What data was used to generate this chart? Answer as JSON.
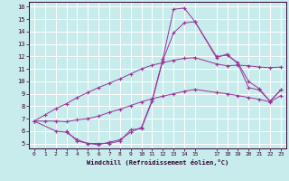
{
  "xlabel": "Windchill (Refroidissement éolien,°C)",
  "bg_color": "#c8ecec",
  "line_color": "#993399",
  "grid_color": "#ffffff",
  "axis_label_color": "#330033",
  "tick_color": "#330033",
  "spine_color": "#330033",
  "xlim": [
    -0.5,
    23.5
  ],
  "ylim": [
    4.6,
    16.4
  ],
  "xtick_positions": [
    0,
    1,
    2,
    3,
    4,
    5,
    6,
    7,
    8,
    9,
    10,
    11,
    12,
    13,
    14,
    15,
    17,
    18,
    19,
    20,
    21,
    22,
    23
  ],
  "xtick_labels": [
    "0",
    "1",
    "2",
    "3",
    "4",
    "5",
    "6",
    "7",
    "8",
    "9",
    "10",
    "11",
    "12",
    "13",
    "14",
    "15",
    "17",
    "18",
    "19",
    "20",
    "21",
    "22",
    "23"
  ],
  "ytick_positions": [
    5,
    6,
    7,
    8,
    9,
    10,
    11,
    12,
    13,
    14,
    15,
    16
  ],
  "ytick_labels": [
    "5",
    "6",
    "7",
    "8",
    "9",
    "10",
    "11",
    "12",
    "13",
    "14",
    "15",
    "16"
  ],
  "line1_x": [
    0,
    2,
    3,
    4,
    5,
    6,
    7,
    8,
    9,
    10,
    11,
    12,
    13,
    14,
    15,
    17,
    18,
    19,
    20,
    21,
    22,
    23
  ],
  "line1_y": [
    6.8,
    6.0,
    5.9,
    5.3,
    5.0,
    4.9,
    5.1,
    5.3,
    5.9,
    6.3,
    8.5,
    11.8,
    15.8,
    15.9,
    14.8,
    12.0,
    12.1,
    11.5,
    10.0,
    9.4,
    8.4,
    9.3
  ],
  "line2_x": [
    3,
    4,
    5,
    6,
    7,
    8,
    9,
    10,
    11,
    12,
    13,
    14,
    15,
    17,
    18,
    19,
    20,
    21,
    22,
    23
  ],
  "line2_y": [
    6.0,
    5.2,
    5.0,
    5.0,
    5.0,
    5.2,
    6.1,
    6.2,
    8.4,
    11.7,
    13.9,
    14.7,
    14.8,
    11.9,
    12.2,
    11.4,
    9.5,
    9.3,
    8.4,
    9.3
  ],
  "line3_x": [
    0,
    1,
    2,
    3,
    4,
    5,
    6,
    7,
    8,
    9,
    10,
    11,
    12,
    13,
    14,
    15,
    17,
    18,
    19,
    20,
    21,
    22,
    23
  ],
  "line3_y": [
    6.8,
    7.3,
    7.8,
    8.2,
    8.7,
    9.1,
    9.5,
    9.85,
    10.2,
    10.6,
    11.0,
    11.3,
    11.5,
    11.7,
    11.85,
    11.9,
    11.4,
    11.25,
    11.3,
    11.25,
    11.15,
    11.1,
    11.15
  ],
  "line4_x": [
    0,
    1,
    2,
    3,
    4,
    5,
    6,
    7,
    8,
    9,
    10,
    11,
    12,
    13,
    14,
    15,
    17,
    18,
    19,
    20,
    21,
    22,
    23
  ],
  "line4_y": [
    6.8,
    6.8,
    6.8,
    6.75,
    6.9,
    7.0,
    7.2,
    7.5,
    7.75,
    8.05,
    8.35,
    8.6,
    8.8,
    9.0,
    9.2,
    9.35,
    9.1,
    9.0,
    8.85,
    8.7,
    8.55,
    8.35,
    8.85
  ]
}
